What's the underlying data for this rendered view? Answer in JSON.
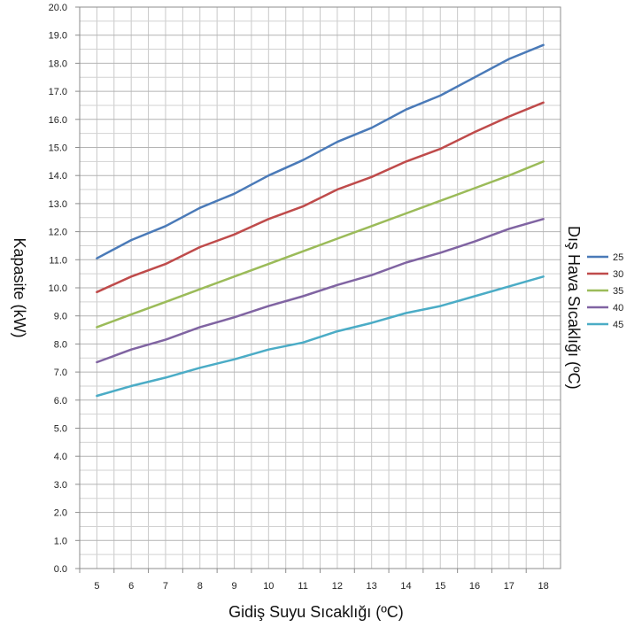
{
  "chart_data": {
    "type": "line",
    "title": "",
    "xlabel": "Gidiş Suyu Sıcaklığı (ºC)",
    "ylabel": "Kapasite (kW)",
    "legend_title": "Dış Hava Sıcaklığı (ºC)",
    "legend_position": "right",
    "grid": true,
    "x": [
      5,
      6,
      7,
      8,
      9,
      10,
      11,
      12,
      13,
      14,
      15,
      16,
      17,
      18
    ],
    "x_tick_labels": [
      "5",
      "6",
      "7",
      "8",
      "9",
      "10",
      "11",
      "12",
      "13",
      "14",
      "15",
      "16",
      "17",
      "18"
    ],
    "ylim": [
      0,
      20
    ],
    "y_ticks": [
      0,
      1,
      2,
      3,
      4,
      5,
      6,
      7,
      8,
      9,
      10,
      11,
      12,
      13,
      14,
      15,
      16,
      17,
      18,
      19,
      20
    ],
    "y_tick_labels": [
      "0.0",
      "1.0",
      "2.0",
      "3.0",
      "4.0",
      "5.0",
      "6.0",
      "7.0",
      "8.0",
      "9.0",
      "10.0",
      "11.0",
      "12.0",
      "13.0",
      "14.0",
      "15.0",
      "16.0",
      "17.0",
      "18.0",
      "19.0",
      "20.0"
    ],
    "series": [
      {
        "name": "25",
        "color": "#4a7ab8",
        "values": [
          11.05,
          11.7,
          12.2,
          12.85,
          13.35,
          14.0,
          14.55,
          15.2,
          15.7,
          16.35,
          16.85,
          17.5,
          18.15,
          18.65
        ]
      },
      {
        "name": "30",
        "color": "#bf4b4b",
        "values": [
          9.85,
          10.4,
          10.85,
          11.45,
          11.9,
          12.45,
          12.9,
          13.5,
          13.95,
          14.5,
          14.95,
          15.55,
          16.1,
          16.6
        ]
      },
      {
        "name": "35",
        "color": "#9bbb59",
        "values": [
          8.6,
          9.05,
          9.5,
          9.95,
          10.4,
          10.85,
          11.3,
          11.75,
          12.2,
          12.65,
          13.1,
          13.55,
          14.0,
          14.5
        ]
      },
      {
        "name": "40",
        "color": "#8064a2",
        "values": [
          7.35,
          7.8,
          8.15,
          8.6,
          8.95,
          9.35,
          9.7,
          10.1,
          10.45,
          10.9,
          11.25,
          11.65,
          12.1,
          12.45
        ]
      },
      {
        "name": "45",
        "color": "#4bacc6",
        "values": [
          6.15,
          6.5,
          6.8,
          7.15,
          7.45,
          7.8,
          8.05,
          8.45,
          8.75,
          9.1,
          9.35,
          9.7,
          10.05,
          10.4
        ]
      }
    ]
  }
}
